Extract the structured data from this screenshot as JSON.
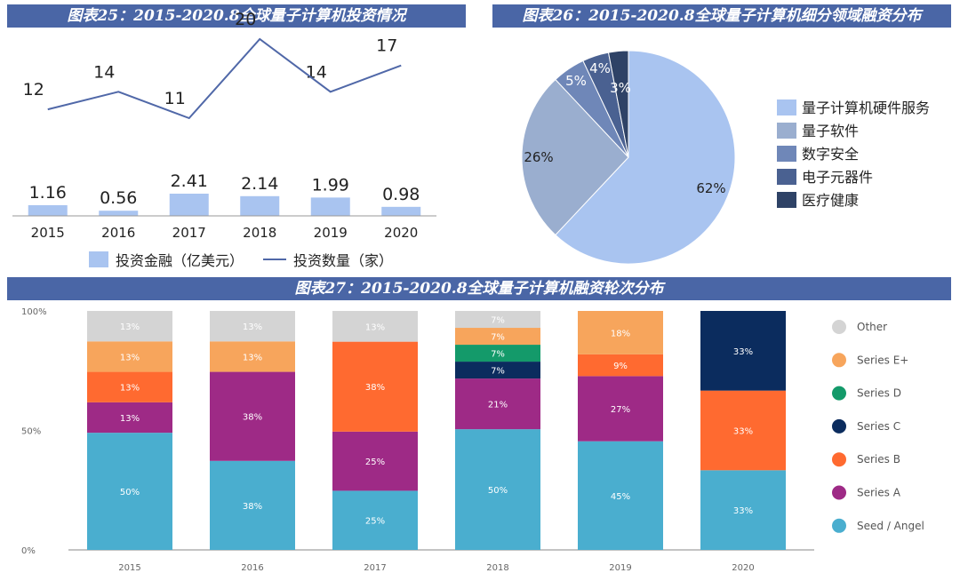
{
  "titles": {
    "t25": "图表25：2015-2020.8全球量子计算机投资情况",
    "t26": "图表26：2015-2020.8全球量子计算机细分领域融资分布",
    "t27": "图表27：2015-2020.8全球量子计算机融资轮次分布"
  },
  "legend25": {
    "bar": "投资金融（亿美元）",
    "line": "投资数量（家）"
  },
  "colors": {
    "bar25": "#a9c4f0",
    "line25": "#5068a8",
    "pie": [
      "#a9c4f0",
      "#9aaecf",
      "#6f87b8",
      "#4a6191",
      "#2e4266"
    ],
    "stack": {
      "Seed / Angel": "#4aaecf",
      "Series A": "#9e2a86",
      "Series B": "#ff6a30",
      "Series C": "#0b2c5e",
      "Series D": "#149a6a",
      "Series E+": "#f7a55c",
      "Other": "#d4d4d4"
    }
  },
  "chart_data": [
    {
      "type": "bar",
      "title": "图表25：2015-2020.8全球量子计算机投资情况",
      "categories": [
        "2015",
        "2016",
        "2017",
        "2018",
        "2019",
        "2020"
      ],
      "series": [
        {
          "name": "投资金融（亿美元）",
          "type": "bar",
          "values": [
            1.16,
            0.56,
            2.41,
            2.14,
            1.99,
            0.98
          ]
        },
        {
          "name": "投资数量（家）",
          "type": "line",
          "values": [
            12,
            14,
            11,
            20,
            14,
            17
          ]
        }
      ]
    },
    {
      "type": "pie",
      "title": "图表26：2015-2020.8全球量子计算机细分领域融资分布",
      "labels": [
        "量子计算机硬件服务",
        "量子软件",
        "数字安全",
        "电子元器件",
        "医疗健康"
      ],
      "values": [
        62,
        26,
        5,
        4,
        3
      ],
      "value_labels": [
        "62%",
        "26%",
        "5%",
        "4%",
        "3%"
      ]
    },
    {
      "type": "bar",
      "stacked": true,
      "title": "图表27：2015-2020.8全球量子计算机融资轮次分布",
      "categories": [
        "2015",
        "2016",
        "2017",
        "2018",
        "2019",
        "2020"
      ],
      "y_ticks": [
        "100%",
        "50%",
        "0%"
      ],
      "ylim": [
        0,
        100
      ],
      "legend_order": [
        "Other",
        "Series E+",
        "Series D",
        "Series C",
        "Series B",
        "Series A",
        "Seed / Angel"
      ],
      "series": [
        {
          "name": "Seed / Angel",
          "values": [
            50,
            38,
            25,
            50,
            45,
            33
          ]
        },
        {
          "name": "Series A",
          "values": [
            13,
            38,
            25,
            21,
            27,
            0
          ]
        },
        {
          "name": "Series B",
          "values": [
            13,
            0,
            38,
            0,
            9,
            33
          ]
        },
        {
          "name": "Series C",
          "values": [
            0,
            0,
            0,
            7,
            0,
            33
          ]
        },
        {
          "name": "Series D",
          "values": [
            0,
            0,
            0,
            7,
            0,
            0
          ]
        },
        {
          "name": "Series E+",
          "values": [
            13,
            13,
            0,
            7,
            18,
            0
          ]
        },
        {
          "name": "Other",
          "values": [
            13,
            13,
            13,
            7,
            0,
            0
          ]
        }
      ]
    }
  ]
}
